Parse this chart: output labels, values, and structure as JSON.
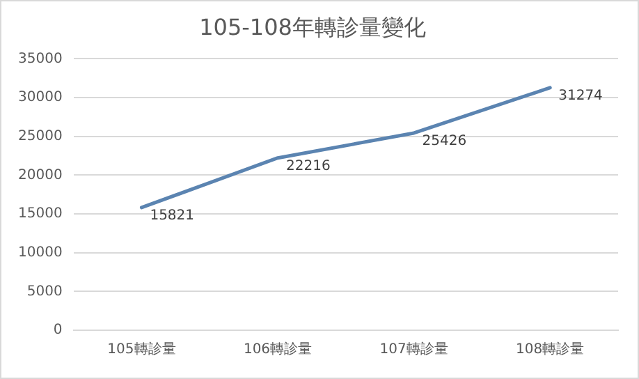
{
  "chart_data": {
    "type": "line",
    "title": "105-108年轉診量變化",
    "categories": [
      "105轉診量",
      "106轉診量",
      "107轉診量",
      "108轉診量"
    ],
    "series": [
      {
        "color": "#5b84b1",
        "values": [
          15821,
          22216,
          25426,
          31274
        ]
      }
    ],
    "ylim": [
      0,
      35000
    ],
    "yticks": [
      0,
      5000,
      10000,
      15000,
      20000,
      25000,
      30000,
      35000
    ],
    "grid": "y",
    "legend": false,
    "marker": "none",
    "line_style": "solid",
    "data_labels": true
  }
}
